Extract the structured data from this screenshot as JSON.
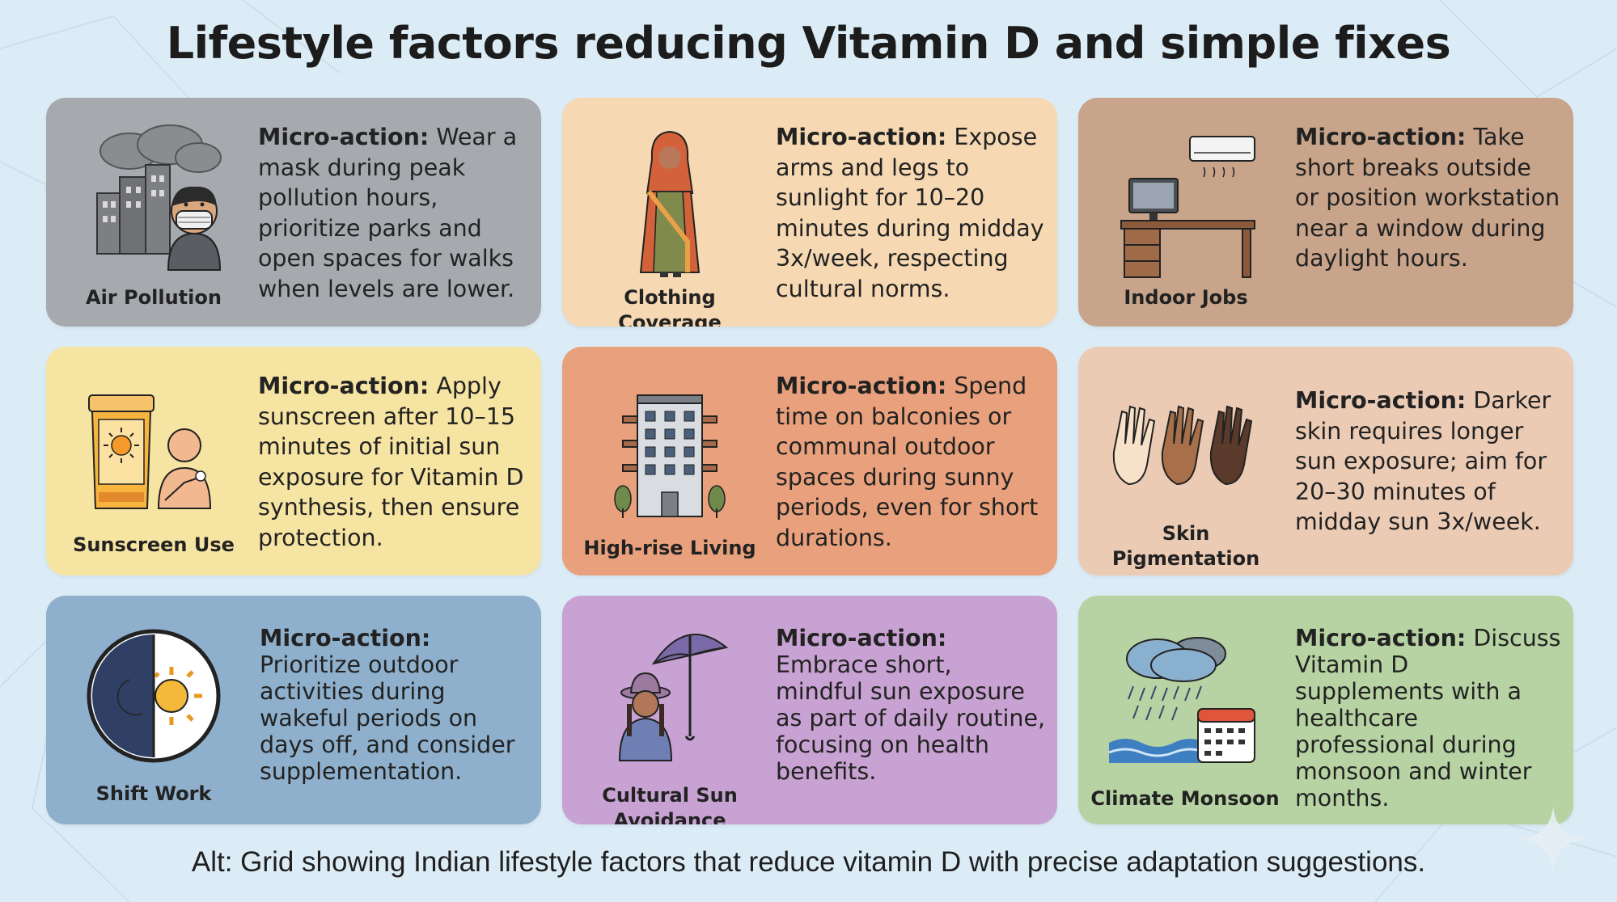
{
  "title": "Lifestyle factors reducing Vitamin D and simple fixes",
  "micro_label": "Micro-action:",
  "cards": [
    {
      "label": "Air Pollution",
      "icon": "air-pollution-icon",
      "bg": "#a6aaae",
      "text": "Wear a mask during peak pollution hours, prioritize parks and open spaces for walks when levels are lower."
    },
    {
      "label": "Clothing Coverage",
      "icon": "saree-woman-icon",
      "bg": "#f6d8b2",
      "text": "Expose arms and legs to sunlight for 10–20 minutes during midday 3x/week, respecting cultural norms."
    },
    {
      "label": "Indoor Jobs",
      "icon": "office-desk-icon",
      "bg": "#c8a48a",
      "text": "Take short breaks outside or position workstation near a window during daylight hours."
    },
    {
      "label": "Sunscreen Use",
      "icon": "sunscreen-icon",
      "bg": "#f6e4a2",
      "text": "Apply sunscreen after 10–15 minutes of initial sun exposure for Vitamin D synthesis, then ensure protection."
    },
    {
      "label": "High-rise Living",
      "icon": "high-rise-building-icon",
      "bg": "#e9a07c",
      "text": "Spend time on balconies or communal outdoor spaces during sunny periods, even for short durations."
    },
    {
      "label": "Skin\nPigmentation",
      "icon": "hands-skin-tones-icon",
      "bg": "#eccbb5",
      "text": "Darker skin requires longer sun exposure; aim for 20–30 minutes of midday sun 3x/week."
    },
    {
      "label": "Shift Work",
      "icon": "day-night-clock-icon",
      "bg": "#8fb0cc",
      "text": "Prioritize outdoor activities during wakeful periods on days off, and consider supplementation."
    },
    {
      "label": "Cultural Sun\nAvoidance",
      "icon": "umbrella-woman-icon",
      "bg": "#c8a2d2",
      "text": "Embrace short, mindful sun exposure as part of daily routine, focusing on health benefits."
    },
    {
      "label": "Climate Monsoon",
      "icon": "rain-calendar-icon",
      "bg": "#b7d3a3",
      "text": "Discuss Vitamin D supplements with a healthcare professional during monsoon and winter months."
    }
  ],
  "caption": "Alt: Grid showing Indian lifestyle factors that reduce vitamin D with precise adaptation suggestions."
}
